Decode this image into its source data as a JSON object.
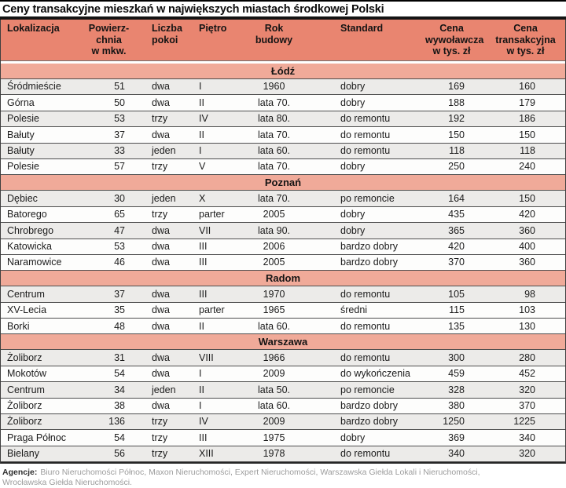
{
  "colors": {
    "header_bg": "#e98570",
    "section_bg": "#f0aa99",
    "row_gray": "#ecebe9",
    "row_white": "#fdfdfc"
  },
  "footer": {
    "label": "Agencje:",
    "text": "Biuro Nieruchomości Północ,  Maxon Nieruchomości, Expert Nieruchomości, Warszawska Giełda Lokali i Nieruchomości,\nWrocławska Giełda Nieruchomości."
  },
  "chart_data": {
    "type": "table",
    "title": "Ceny transakcyjne mieszkań w największych miastach środkowej Polski",
    "columns": [
      "Lokalizacja",
      "Powierz-\nchnia\nw mkw.",
      "Liczba\npokoi",
      "Piętro",
      "Rok\nbudowy",
      "Standard",
      "Cena\nwywoławcza\nw tys. zł",
      "Cena\ntransakcyjna\nw tys. zł"
    ],
    "sections": [
      {
        "name": "Łódź",
        "rows": [
          {
            "lokalizacja": "Śródmieście",
            "powierzchnia": 51,
            "pokoje": "dwa",
            "pietro": "I",
            "rok": "1960",
            "standard": "dobry",
            "cena_wywolawcza": 169,
            "cena_transakcyjna": 160,
            "shade": "gray"
          },
          {
            "lokalizacja": "Górna",
            "powierzchnia": 50,
            "pokoje": "dwa",
            "pietro": "II",
            "rok": "lata 70.",
            "standard": "dobry",
            "cena_wywolawcza": 188,
            "cena_transakcyjna": 179,
            "shade": "white"
          },
          {
            "lokalizacja": "Polesie",
            "powierzchnia": 53,
            "pokoje": "trzy",
            "pietro": "IV",
            "rok": "lata 80.",
            "standard": "do remontu",
            "cena_wywolawcza": 192,
            "cena_transakcyjna": 186,
            "shade": "gray"
          },
          {
            "lokalizacja": "Bałuty",
            "powierzchnia": 37,
            "pokoje": "dwa",
            "pietro": "II",
            "rok": "lata 70.",
            "standard": "do remontu",
            "cena_wywolawcza": 150,
            "cena_transakcyjna": 150,
            "shade": "white"
          },
          {
            "lokalizacja": "Bałuty",
            "powierzchnia": 33,
            "pokoje": "jeden",
            "pietro": "I",
            "rok": "lata 60.",
            "standard": "do remontu",
            "cena_wywolawcza": 118,
            "cena_transakcyjna": 118,
            "shade": "gray"
          },
          {
            "lokalizacja": "Polesie",
            "powierzchnia": 57,
            "pokoje": "trzy",
            "pietro": "V",
            "rok": "lata 70.",
            "standard": "dobry",
            "cena_wywolawcza": 250,
            "cena_transakcyjna": 240,
            "shade": "white"
          }
        ]
      },
      {
        "name": "Poznań",
        "rows": [
          {
            "lokalizacja": "Dębiec",
            "powierzchnia": 30,
            "pokoje": "jeden",
            "pietro": "X",
            "rok": "lata 70.",
            "standard": "po remoncie",
            "cena_wywolawcza": 164,
            "cena_transakcyjna": 150,
            "shade": "gray"
          },
          {
            "lokalizacja": "Batorego",
            "powierzchnia": 65,
            "pokoje": "trzy",
            "pietro": "parter",
            "rok": "2005",
            "standard": "dobry",
            "cena_wywolawcza": 435,
            "cena_transakcyjna": 420,
            "shade": "white"
          },
          {
            "lokalizacja": "Chrobrego",
            "powierzchnia": 47,
            "pokoje": "dwa",
            "pietro": "VII",
            "rok": "lata 90.",
            "standard": "dobry",
            "cena_wywolawcza": 365,
            "cena_transakcyjna": 360,
            "shade": "gray"
          },
          {
            "lokalizacja": "Katowicka",
            "powierzchnia": 53,
            "pokoje": "dwa",
            "pietro": "III",
            "rok": "2006",
            "standard": "bardzo dobry",
            "cena_wywolawcza": 420,
            "cena_transakcyjna": 400,
            "shade": "white"
          },
          {
            "lokalizacja": "Naramowice",
            "powierzchnia": 46,
            "pokoje": "dwa",
            "pietro": "III",
            "rok": "2005",
            "standard": "bardzo dobry",
            "cena_wywolawcza": 370,
            "cena_transakcyjna": 360,
            "shade": "white"
          }
        ]
      },
      {
        "name": "Radom",
        "rows": [
          {
            "lokalizacja": "Centrum",
            "powierzchnia": 37,
            "pokoje": "dwa",
            "pietro": "III",
            "rok": "1970",
            "standard": "do remontu",
            "cena_wywolawcza": 105,
            "cena_transakcyjna": 98,
            "shade": "gray"
          },
          {
            "lokalizacja": "XV-Lecia",
            "powierzchnia": 35,
            "pokoje": "dwa",
            "pietro": "parter",
            "rok": "1965",
            "standard": "średni",
            "cena_wywolawcza": 115,
            "cena_transakcyjna": 103,
            "shade": "white"
          },
          {
            "lokalizacja": "Borki",
            "powierzchnia": 48,
            "pokoje": "dwa",
            "pietro": "II",
            "rok": "lata 60.",
            "standard": "do remontu",
            "cena_wywolawcza": 135,
            "cena_transakcyjna": 130,
            "shade": "white"
          }
        ]
      },
      {
        "name": "Warszawa",
        "rows": [
          {
            "lokalizacja": "Żoliborz",
            "powierzchnia": 31,
            "pokoje": "dwa",
            "pietro": "VIII",
            "rok": "1966",
            "standard": "do remontu",
            "cena_wywolawcza": 300,
            "cena_transakcyjna": 280,
            "shade": "gray"
          },
          {
            "lokalizacja": "Mokotów",
            "powierzchnia": 54,
            "pokoje": "dwa",
            "pietro": "I",
            "rok": "2009",
            "standard": "do wykończenia",
            "cena_wywolawcza": 459,
            "cena_transakcyjna": 452,
            "shade": "white"
          },
          {
            "lokalizacja": "Centrum",
            "powierzchnia": 34,
            "pokoje": "jeden",
            "pietro": "II",
            "rok": "lata 50.",
            "standard": "po remoncie",
            "cena_wywolawcza": 328,
            "cena_transakcyjna": 320,
            "shade": "gray"
          },
          {
            "lokalizacja": "Żoliborz",
            "powierzchnia": 38,
            "pokoje": "dwa",
            "pietro": "I",
            "rok": "lata 60.",
            "standard": "bardzo dobry",
            "cena_wywolawcza": 380,
            "cena_transakcyjna": 370,
            "shade": "white"
          },
          {
            "lokalizacja": "Żoliborz",
            "powierzchnia": 136,
            "pokoje": "trzy",
            "pietro": "IV",
            "rok": "2009",
            "standard": "bardzo dobry",
            "cena_wywolawcza": 1250,
            "cena_transakcyjna": 1225,
            "shade": "gray"
          },
          {
            "lokalizacja": "Praga Północ",
            "powierzchnia": 54,
            "pokoje": "trzy",
            "pietro": "III",
            "rok": "1975",
            "standard": "dobry",
            "cena_wywolawcza": 369,
            "cena_transakcyjna": 340,
            "shade": "white"
          },
          {
            "lokalizacja": "Bielany",
            "powierzchnia": 56,
            "pokoje": "trzy",
            "pietro": "XIII",
            "rok": "1978",
            "standard": "do remontu",
            "cena_wywolawcza": 340,
            "cena_transakcyjna": 320,
            "shade": "gray"
          }
        ]
      }
    ]
  }
}
